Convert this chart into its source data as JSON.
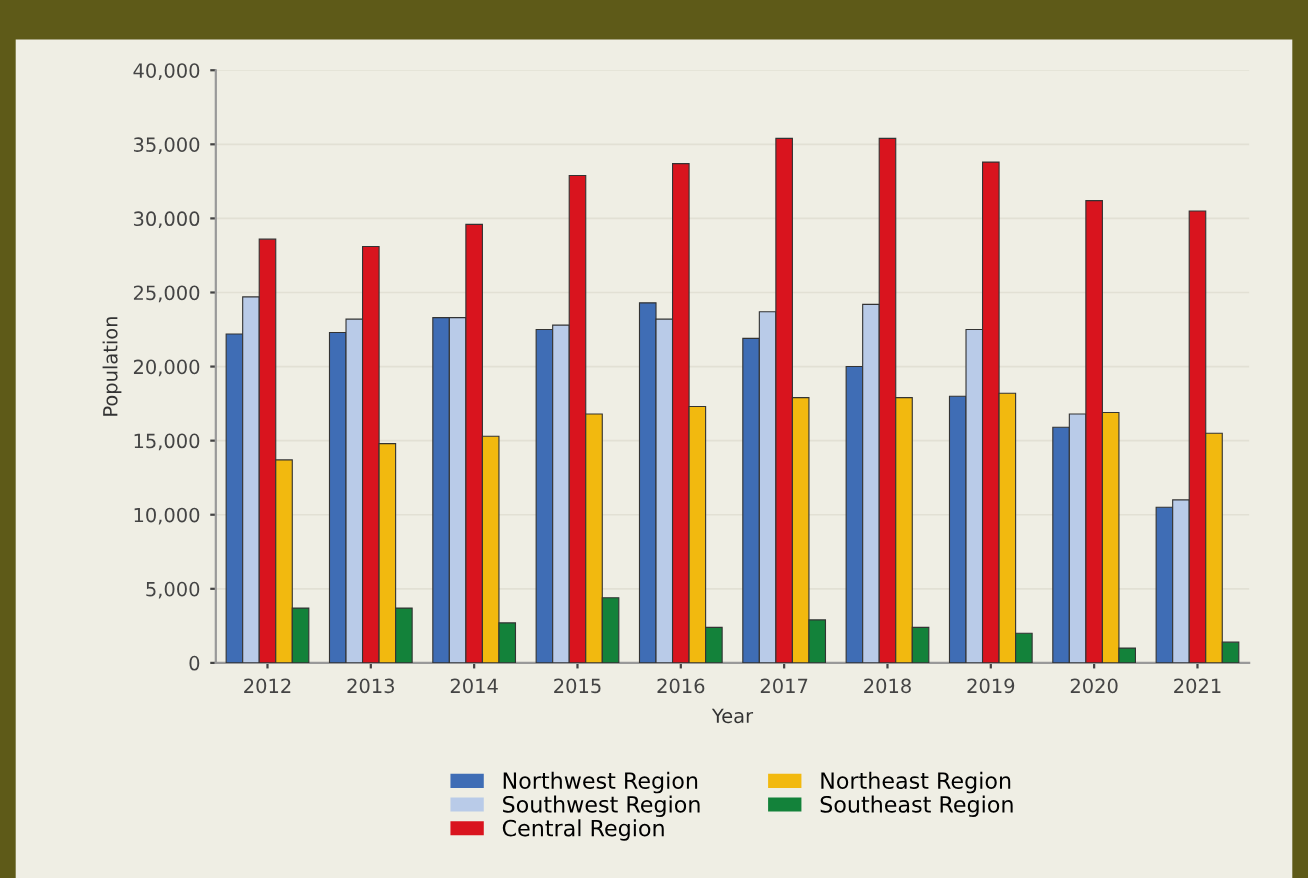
{
  "chart_data": {
    "type": "bar",
    "xlabel": "Year",
    "ylabel": "Population",
    "categories": [
      "2012",
      "2013",
      "2014",
      "2015",
      "2016",
      "2017",
      "2018",
      "2019",
      "2020",
      "2021"
    ],
    "series": [
      {
        "name": "Northwest Region",
        "color": "#3f6db5",
        "values": [
          22200,
          22300,
          23300,
          22500,
          24300,
          21900,
          20000,
          18000,
          15900,
          10500
        ]
      },
      {
        "name": "Southwest Region",
        "color": "#b9cbe8",
        "values": [
          24700,
          23200,
          23300,
          22800,
          23200,
          23700,
          24200,
          22500,
          16800,
          11000
        ]
      },
      {
        "name": "Central Region",
        "color": "#d9141e",
        "values": [
          28600,
          28100,
          29600,
          32900,
          33700,
          35400,
          35400,
          33800,
          31200,
          30500
        ]
      },
      {
        "name": "Northeast Region",
        "color": "#f2b90f",
        "values": [
          13700,
          14800,
          15300,
          16800,
          17300,
          17900,
          17900,
          18200,
          16900,
          15500
        ]
      },
      {
        "name": "Southeast Region",
        "color": "#13823a",
        "values": [
          3700,
          3700,
          2700,
          4400,
          2400,
          2900,
          2400,
          2000,
          1000,
          1400
        ]
      }
    ],
    "ylim": [
      0,
      40000
    ],
    "yticks": [
      {
        "value": 0,
        "label": "0"
      },
      {
        "value": 5000,
        "label": "5,000"
      },
      {
        "value": 10000,
        "label": "10,000"
      },
      {
        "value": 15000,
        "label": "15,000"
      },
      {
        "value": 20000,
        "label": "20,000"
      },
      {
        "value": 25000,
        "label": "25,000"
      },
      {
        "value": 30000,
        "label": "30,000"
      },
      {
        "value": 35000,
        "label": "35,000"
      },
      {
        "value": 40000,
        "label": "40,000"
      }
    ],
    "grid": "y",
    "legend": "bottom"
  }
}
